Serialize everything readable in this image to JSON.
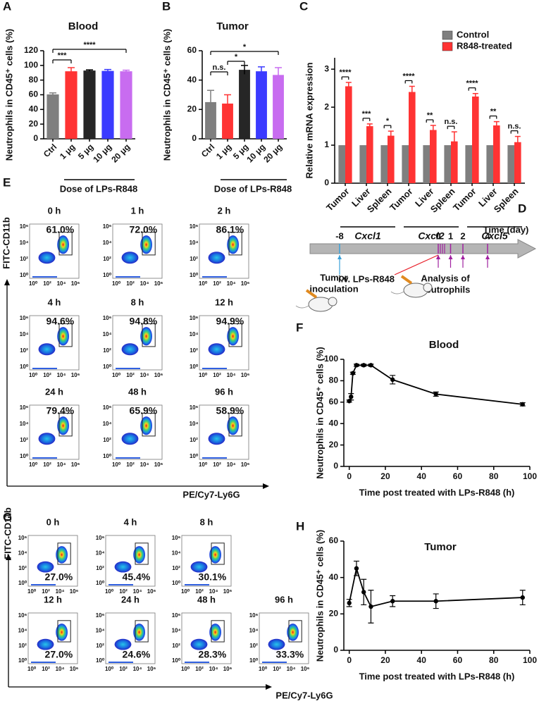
{
  "chart_data": [
    {
      "type": "bar",
      "panel": "A",
      "title": "Blood",
      "ylabel": "Neutrophils in CD45⁺ cells (%)",
      "xlabel": "Dose of LPs-R848",
      "categories": [
        "Ctrl",
        "1 μg",
        "5 μg",
        "10 μg",
        "20 μg"
      ],
      "values": [
        60.5,
        92,
        93,
        92.5,
        92
      ],
      "errors": [
        2,
        5,
        1,
        2,
        1.5
      ],
      "colors": [
        "#7f7f7f",
        "#ff3333",
        "#262626",
        "#3b3bff",
        "#c86cf0"
      ],
      "ylim": [
        0,
        120
      ],
      "yticks": [
        0,
        20,
        40,
        60,
        80,
        100,
        120
      ],
      "significance": [
        "***",
        "****"
      ]
    },
    {
      "type": "bar",
      "panel": "B",
      "title": "Tumor",
      "ylabel": "Neutrophils in CD45⁺ cells (%)",
      "xlabel": "Dose of LPs-R848",
      "categories": [
        "Ctrl",
        "1 μg",
        "5 μg",
        "10 μg",
        "20 μg"
      ],
      "values": [
        25,
        24,
        47,
        46,
        43.5
      ],
      "errors": [
        8,
        6,
        3,
        3,
        5
      ],
      "colors": [
        "#7f7f7f",
        "#ff3333",
        "#262626",
        "#3b3bff",
        "#c86cf0"
      ],
      "ylim": [
        0,
        60
      ],
      "yticks": [
        0,
        20,
        40,
        60
      ],
      "significance": [
        "n.s.",
        "*",
        "*"
      ]
    },
    {
      "type": "grouped_bar",
      "panel": "C",
      "ylabel": "Relative mRNA expression",
      "categories": [
        "Tumor",
        "Liver",
        "Spleen",
        "Tumor",
        "Liver",
        "Spleen",
        "Tumor",
        "Liver",
        "Spleen"
      ],
      "groups": [
        "Cxcl1",
        "Cxcl2",
        "Cxcl5"
      ],
      "series": [
        {
          "name": "Control",
          "color": "#7f7f7f",
          "values": [
            1,
            1,
            1,
            1,
            1,
            1,
            1,
            1,
            1
          ]
        },
        {
          "name": "R848-treated",
          "color": "#ff3333",
          "values": [
            2.55,
            1.5,
            1.25,
            2.4,
            1.4,
            1.1,
            2.28,
            1.52,
            1.08
          ],
          "errors": [
            0.1,
            0.06,
            0.12,
            0.15,
            0.12,
            0.25,
            0.08,
            0.1,
            0.15
          ]
        }
      ],
      "ylim": [
        0,
        3.3
      ],
      "yticks": [
        0,
        1,
        2,
        3
      ],
      "significance": [
        "****",
        "***",
        "*",
        "****",
        "**",
        "n.s.",
        "****",
        "**",
        "n.s."
      ]
    },
    {
      "type": "line",
      "panel": "F",
      "title": "Blood",
      "ylabel": "Neutrophils in CD45⁺ cells (%)",
      "xlabel": "Time post treated with LPs-R848 (h)",
      "x": [
        0,
        1,
        2,
        4,
        8,
        12,
        24,
        48,
        96
      ],
      "values": [
        61,
        65,
        87,
        94.5,
        94.5,
        94.5,
        81,
        67.5,
        58
      ],
      "errors": [
        1,
        3,
        1,
        1,
        1,
        1,
        4,
        2,
        1.5
      ],
      "color": "#000000",
      "xlim": [
        -3,
        100
      ],
      "xticks": [
        0,
        20,
        40,
        60,
        80,
        100
      ],
      "ylim": [
        0,
        100
      ],
      "yticks": [
        0,
        20,
        40,
        60,
        80,
        100
      ]
    },
    {
      "type": "line",
      "panel": "H",
      "title": "Tumor",
      "ylabel": "Neutrophils in CD45⁺ cells (%)",
      "xlabel": "Time post treated with LPs-R848 (h)",
      "x": [
        0,
        4,
        8,
        12,
        24,
        48,
        96
      ],
      "values": [
        26,
        45,
        32,
        24,
        27,
        27,
        29
      ],
      "errors": [
        2,
        4,
        7,
        9,
        3,
        4,
        4
      ],
      "color": "#000000",
      "xlim": [
        -3,
        100
      ],
      "xticks": [
        0,
        20,
        40,
        60,
        80,
        100
      ],
      "ylim": [
        0,
        60
      ],
      "yticks": [
        0,
        20,
        40,
        60
      ]
    }
  ],
  "timeline": {
    "panel": "D",
    "label": "Time (day)",
    "ticks": [
      -8,
      0,
      1,
      2,
      4
    ],
    "tick_colors": [
      "#3aa0d8",
      "#e8202a",
      "#222222",
      "#222222",
      "#222222"
    ],
    "events": [
      {
        "text": [
          "Tumor",
          "inoculation"
        ],
        "color": "#3aa0d8"
      },
      {
        "text": [
          "i.v. LPs-R848"
        ],
        "color": "#e8202a"
      },
      {
        "text": [
          "Analysis of",
          "neutrophils"
        ],
        "color": "#333333"
      }
    ]
  },
  "flow_E": {
    "panel": "E",
    "y_label": "FITC-CD11b",
    "x_label": "PE/Cy7-Ly6G",
    "axis_ticks": [
      "10⁰",
      "10²",
      "10⁴",
      "10⁶"
    ],
    "plots": [
      {
        "time": "0 h",
        "percent": "61.0%"
      },
      {
        "time": "1 h",
        "percent": "72.0%"
      },
      {
        "time": "2 h",
        "percent": "86.1%"
      },
      {
        "time": "4 h",
        "percent": "94.6%"
      },
      {
        "time": "8 h",
        "percent": "94.8%"
      },
      {
        "time": "12 h",
        "percent": "94.9%"
      },
      {
        "time": "24 h",
        "percent": "79.4%"
      },
      {
        "time": "48 h",
        "percent": "65.9%"
      },
      {
        "time": "96 h",
        "percent": "58.9%"
      }
    ]
  },
  "flow_G": {
    "panel": "G",
    "y_label": "FITC-CD11b",
    "x_label": "PE/Cy7-Ly6G",
    "axis_ticks": [
      "10⁰",
      "10²",
      "10⁴",
      "10⁶"
    ],
    "plots": [
      {
        "time": "0 h",
        "percent": "27.0%"
      },
      {
        "time": "4 h",
        "percent": "45.4%"
      },
      {
        "time": "8 h",
        "percent": "30.1%"
      },
      {
        "time": "12 h",
        "percent": "27.0%"
      },
      {
        "time": "24 h",
        "percent": "24.6%"
      },
      {
        "time": "48 h",
        "percent": "28.3%"
      },
      {
        "time": "96 h",
        "percent": "33.3%"
      }
    ]
  }
}
